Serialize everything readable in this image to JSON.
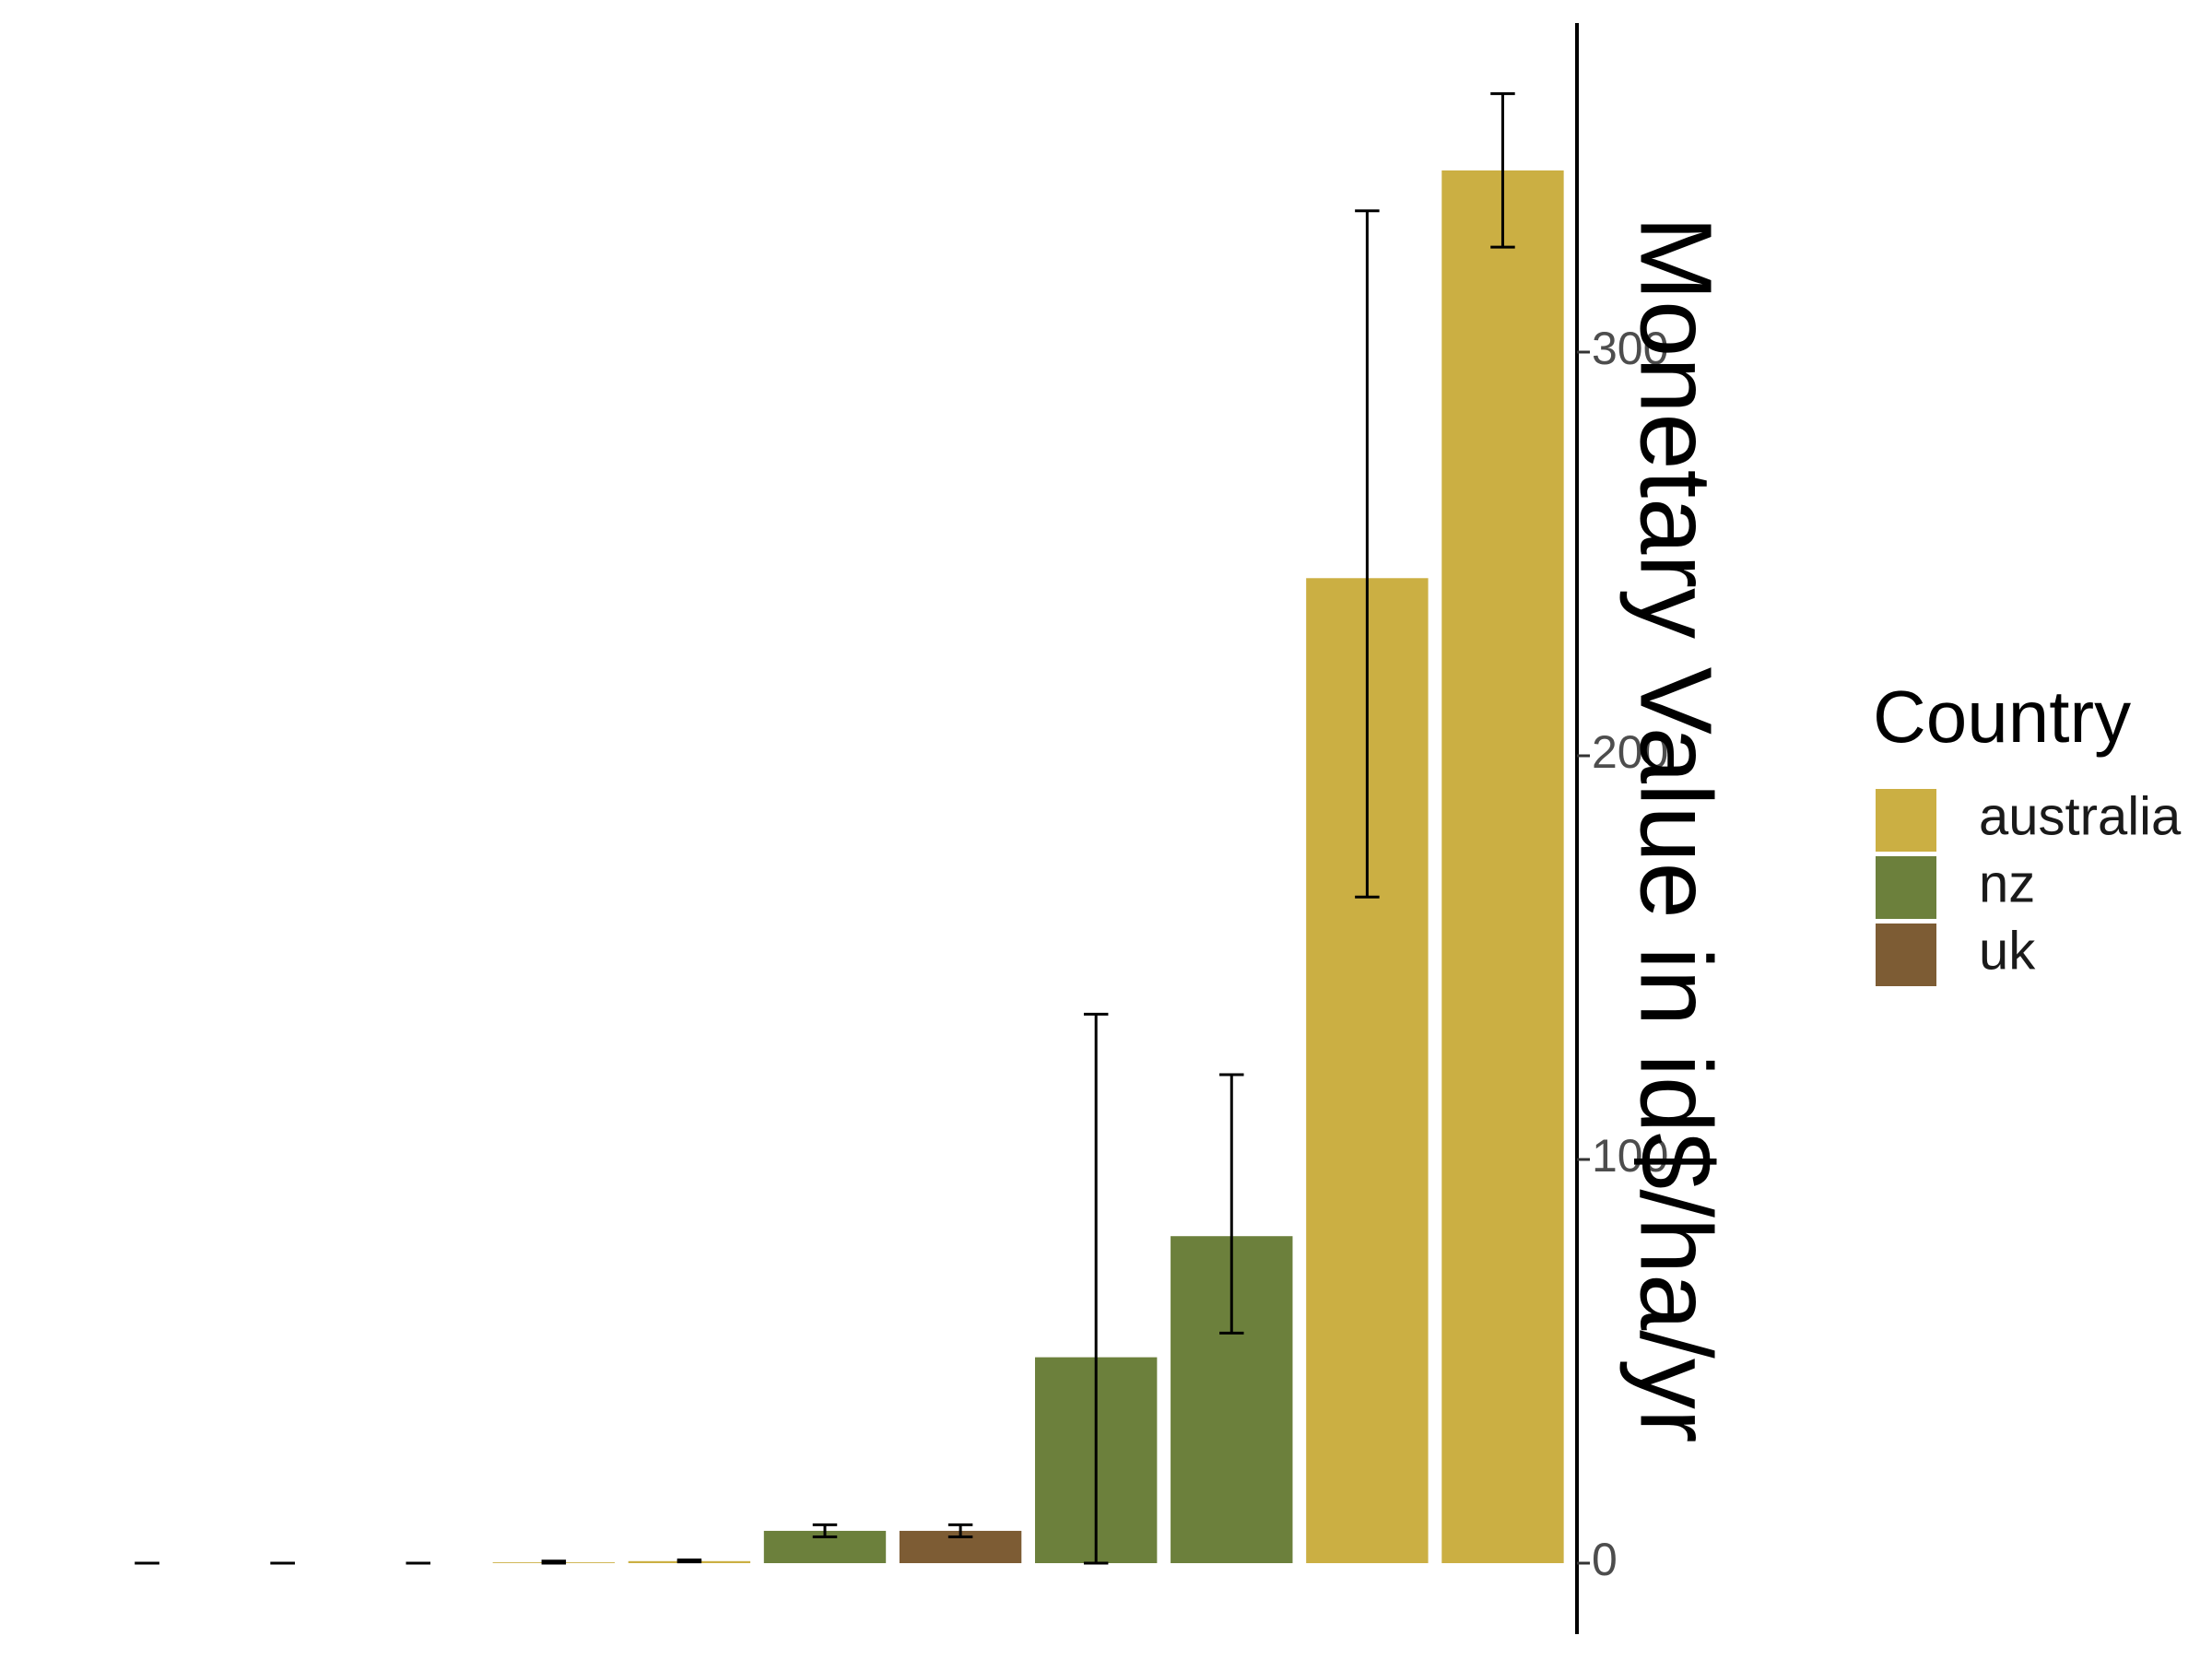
{
  "chart_data": {
    "type": "bar",
    "ylabel": "Monetary Value in id$/ha/yr",
    "xlabel": "",
    "ylim": [
      -8,
      385
    ],
    "y_ticks": [
      0,
      100,
      200,
      300
    ],
    "y_axis_position": "right",
    "y_axis_label_rotation": "90deg clockwise",
    "grid": false,
    "legend": {
      "title": "Country",
      "position": "right",
      "entries": [
        {
          "name": "australia",
          "color": "#CBAF43"
        },
        {
          "name": "nz",
          "color": "#6C803C"
        },
        {
          "name": "uk",
          "color": "#7D5C34"
        }
      ]
    },
    "bars": [
      {
        "country": "australia",
        "value": 0.0,
        "err_low": 0.0,
        "err_high": 0.0
      },
      {
        "country": "australia",
        "value": 0.0,
        "err_low": 0.0,
        "err_high": 0.0
      },
      {
        "country": "australia",
        "value": 0.0,
        "err_low": 0.0,
        "err_high": 0.0
      },
      {
        "country": "australia",
        "value": 0.2,
        "err_low": 0.0,
        "err_high": 0.5
      },
      {
        "country": "australia",
        "value": 0.5,
        "err_low": 0.3,
        "err_high": 0.8
      },
      {
        "country": "nz",
        "value": 8,
        "err_low": 6.5,
        "err_high": 9.5
      },
      {
        "country": "uk",
        "value": 8,
        "err_low": 6.5,
        "err_high": 9.5
      },
      {
        "country": "nz",
        "value": 51,
        "err_low": 0,
        "err_high": 136
      },
      {
        "country": "nz",
        "value": 81,
        "err_low": 57,
        "err_high": 121
      },
      {
        "country": "australia",
        "value": 244,
        "err_low": 165,
        "err_high": 335
      },
      {
        "country": "australia",
        "value": 345,
        "err_low": 326,
        "err_high": 364
      }
    ]
  }
}
